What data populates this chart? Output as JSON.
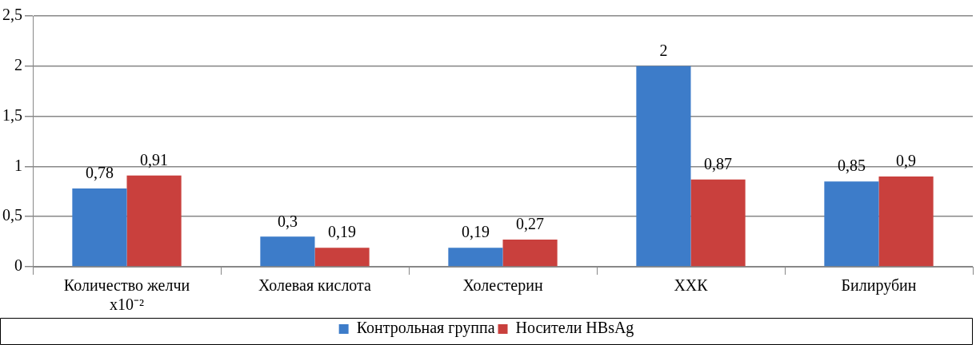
{
  "chart_data": {
    "type": "bar",
    "categories": [
      "Количество желчи\nx10⁻²",
      "Холевая кислота",
      "Холестерин",
      "ХХК",
      "Билирубин"
    ],
    "series": [
      {
        "name": "Контрольная группа",
        "color": "#3d7cc9",
        "values": [
          0.78,
          0.3,
          0.19,
          2,
          0.85
        ],
        "value_labels": [
          "0,78",
          "0,3",
          "0,19",
          "2",
          "0,85"
        ]
      },
      {
        "name": "Носители HBsAg",
        "color": "#c9403d",
        "values": [
          0.91,
          0.19,
          0.27,
          0.87,
          0.9
        ],
        "value_labels": [
          "0,91",
          "0,19",
          "0,27",
          "0,87",
          "0,9"
        ]
      }
    ],
    "ylim": [
      0,
      2.5
    ],
    "yticks": [
      0,
      {
        "value": 0.5,
        "label": "0,5"
      },
      1,
      {
        "value": 1.5,
        "label": "1,5"
      },
      2,
      {
        "value": 2.5,
        "label": "2,5"
      }
    ],
    "grid": "y",
    "legend": "bottom"
  }
}
